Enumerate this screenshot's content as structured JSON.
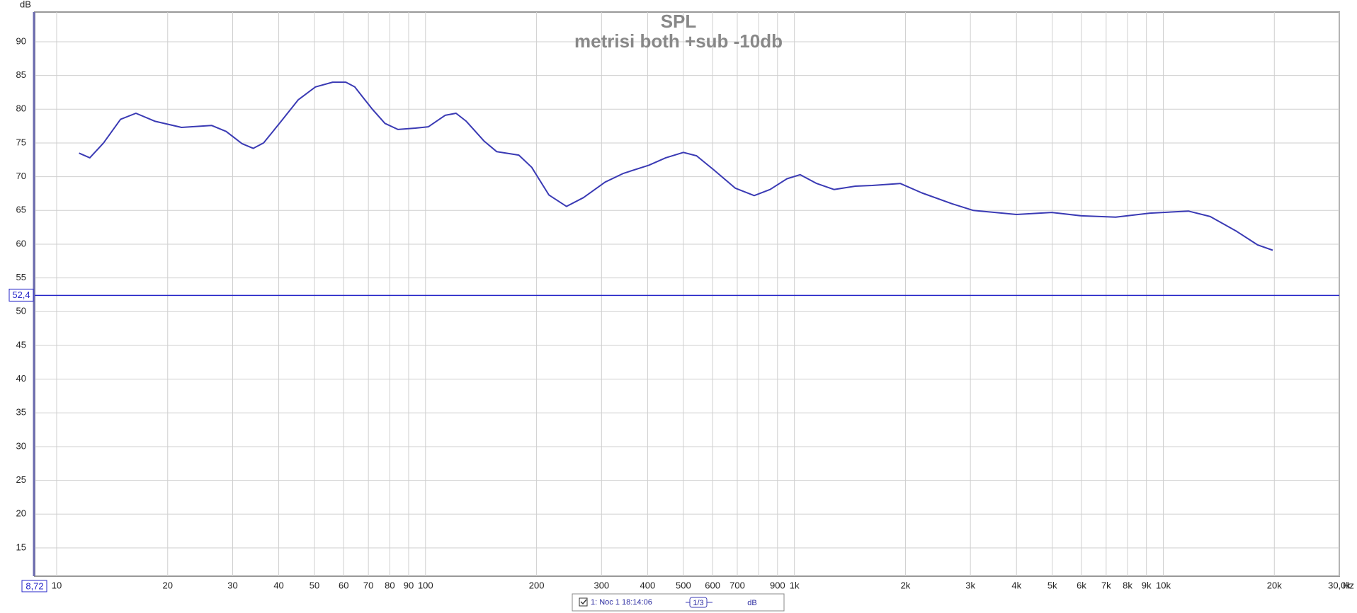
{
  "chart_data": {
    "type": "line",
    "title": "SPL",
    "subtitle": "metrisi both +sub -10db",
    "y_label": "dB",
    "x_unit": "Hz",
    "log_x": true,
    "grid": true,
    "xlim": [
      8.72,
      30000
    ],
    "ylim": [
      10.8,
      94.4
    ],
    "x_start": {
      "value": 8.72,
      "label": "8,72"
    },
    "cursor_y": {
      "value": 52.4,
      "label": "52,4"
    },
    "yticks": [
      15,
      20,
      25,
      30,
      35,
      40,
      45,
      50,
      55,
      60,
      65,
      70,
      75,
      80,
      85,
      90
    ],
    "xticks": [
      10,
      20,
      30,
      40,
      50,
      60,
      70,
      80,
      90,
      100,
      200,
      300,
      400,
      500,
      600,
      700,
      {
        "value": 800,
        "label": null
      },
      900,
      {
        "value": 1000,
        "label": "1k"
      },
      {
        "value": 2000,
        "label": "2k"
      },
      {
        "value": 3000,
        "label": "3k"
      },
      {
        "value": 4000,
        "label": "4k"
      },
      {
        "value": 5000,
        "label": "5k"
      },
      {
        "value": 6000,
        "label": "6k"
      },
      {
        "value": 7000,
        "label": "7k"
      },
      {
        "value": 8000,
        "label": "8k"
      },
      {
        "value": 9000,
        "label": "9k"
      },
      {
        "value": 10000,
        "label": "10k"
      },
      {
        "value": 20000,
        "label": "20k"
      },
      {
        "value": 30000,
        "label": "30,0k"
      }
    ],
    "x": [
      11.5,
      12.3,
      13.4,
      14.9,
      16.4,
      18.5,
      21.8,
      26.3,
      28.8,
      31.8,
      34.1,
      36.4,
      40.6,
      45.2,
      50.3,
      56,
      60.8,
      64.3,
      71.5,
      77.6,
      84.2,
      93.9,
      101.8,
      113,
      121,
      129,
      144,
      156,
      179,
      194,
      216,
      241,
      268,
      307,
      344,
      403,
      448,
      500,
      543,
      605,
      691,
      778,
      859,
      955,
      1036,
      1149,
      1280,
      1463,
      1625,
      1936,
      2216,
      2673,
      3056,
      4000,
      4984,
      6000,
      7430,
      9200,
      11700,
      13400,
      15800,
      18000,
      19800
    ],
    "series": [
      {
        "name": "1: Noc 1 18:14:06",
        "color": "#3a3ab4",
        "values": [
          73.5,
          72.8,
          75,
          78.5,
          79.4,
          78.2,
          77.3,
          77.6,
          76.7,
          74.9,
          74.2,
          75,
          78.2,
          81.4,
          83.3,
          84,
          84,
          83.3,
          80.1,
          77.9,
          77,
          77.2,
          77.4,
          79.1,
          79.4,
          78.2,
          75.3,
          73.7,
          73.2,
          71.4,
          67.3,
          65.6,
          66.9,
          69.2,
          70.5,
          71.7,
          72.8,
          73.6,
          73.1,
          71,
          68.3,
          67.2,
          68.1,
          69.7,
          70.3,
          69,
          68.1,
          68.6,
          68.7,
          69,
          67.6,
          66,
          65,
          64.4,
          64.7,
          64.2,
          64,
          64.6,
          64.9,
          64.1,
          61.9,
          59.9,
          59.1
        ]
      }
    ],
    "cursor_color": "#2626c8",
    "smoothing": "1/3",
    "legend_unit": "dB"
  }
}
